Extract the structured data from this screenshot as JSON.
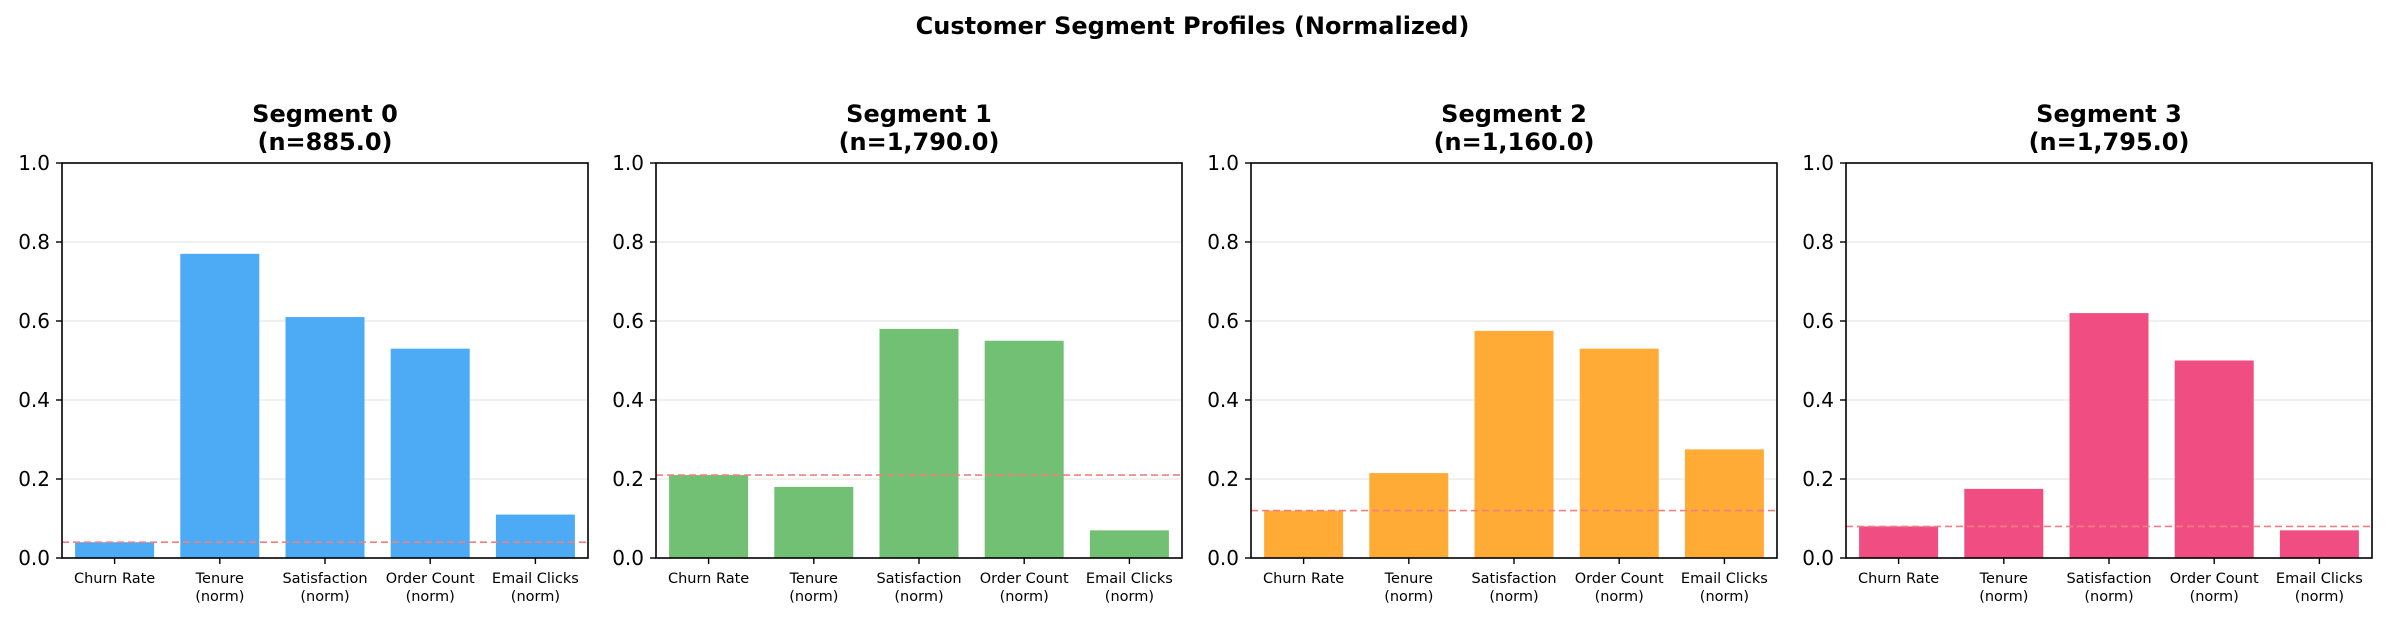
{
  "suptitle": "Customer Segment Profiles (Normalized)",
  "chart_data": [
    {
      "type": "bar",
      "title_line1": "Segment 0",
      "title_line2": "(n=885.0)",
      "categories": [
        [
          "Churn Rate"
        ],
        [
          "Tenure",
          "(norm)"
        ],
        [
          "Satisfaction",
          "(norm)"
        ],
        [
          "Order Count",
          "(norm)"
        ],
        [
          "Email Clicks",
          "(norm)"
        ]
      ],
      "values": [
        0.04,
        0.77,
        0.61,
        0.53,
        0.11
      ],
      "reference_line": 0.04,
      "ylim": [
        0,
        1.0
      ],
      "yticks": [
        "0.0",
        "0.2",
        "0.4",
        "0.6",
        "0.8",
        "1.0"
      ],
      "grid": "y",
      "color": "#4DABF5"
    },
    {
      "type": "bar",
      "title_line1": "Segment 1",
      "title_line2": "(n=1,790.0)",
      "categories": [
        [
          "Churn Rate"
        ],
        [
          "Tenure",
          "(norm)"
        ],
        [
          "Satisfaction",
          "(norm)"
        ],
        [
          "Order Count",
          "(norm)"
        ],
        [
          "Email Clicks",
          "(norm)"
        ]
      ],
      "values": [
        0.21,
        0.18,
        0.58,
        0.55,
        0.07
      ],
      "reference_line": 0.21,
      "ylim": [
        0,
        1.0
      ],
      "yticks": [
        "0.0",
        "0.2",
        "0.4",
        "0.6",
        "0.8",
        "1.0"
      ],
      "grid": "y",
      "color": "#72C074"
    },
    {
      "type": "bar",
      "title_line1": "Segment 2",
      "title_line2": "(n=1,160.0)",
      "categories": [
        [
          "Churn Rate"
        ],
        [
          "Tenure",
          "(norm)"
        ],
        [
          "Satisfaction",
          "(norm)"
        ],
        [
          "Order Count",
          "(norm)"
        ],
        [
          "Email Clicks",
          "(norm)"
        ]
      ],
      "values": [
        0.12,
        0.215,
        0.575,
        0.53,
        0.275
      ],
      "reference_line": 0.12,
      "ylim": [
        0,
        1.0
      ],
      "yticks": [
        "0.0",
        "0.2",
        "0.4",
        "0.6",
        "0.8",
        "1.0"
      ],
      "grid": "y",
      "color": "#FFAB36"
    },
    {
      "type": "bar",
      "title_line1": "Segment 3",
      "title_line2": "(n=1,795.0)",
      "categories": [
        [
          "Churn Rate"
        ],
        [
          "Tenure",
          "(norm)"
        ],
        [
          "Satisfaction",
          "(norm)"
        ],
        [
          "Order Count",
          "(norm)"
        ],
        [
          "Email Clicks",
          "(norm)"
        ]
      ],
      "values": [
        0.08,
        0.175,
        0.62,
        0.5,
        0.07
      ],
      "reference_line": 0.08,
      "ylim": [
        0,
        1.0
      ],
      "yticks": [
        "0.0",
        "0.2",
        "0.4",
        "0.6",
        "0.8",
        "1.0"
      ],
      "grid": "y",
      "color": "#F04E82"
    }
  ],
  "colors": {
    "reference_line": "#F08080",
    "axis": "#000000",
    "grid": "#E6E6E6"
  }
}
